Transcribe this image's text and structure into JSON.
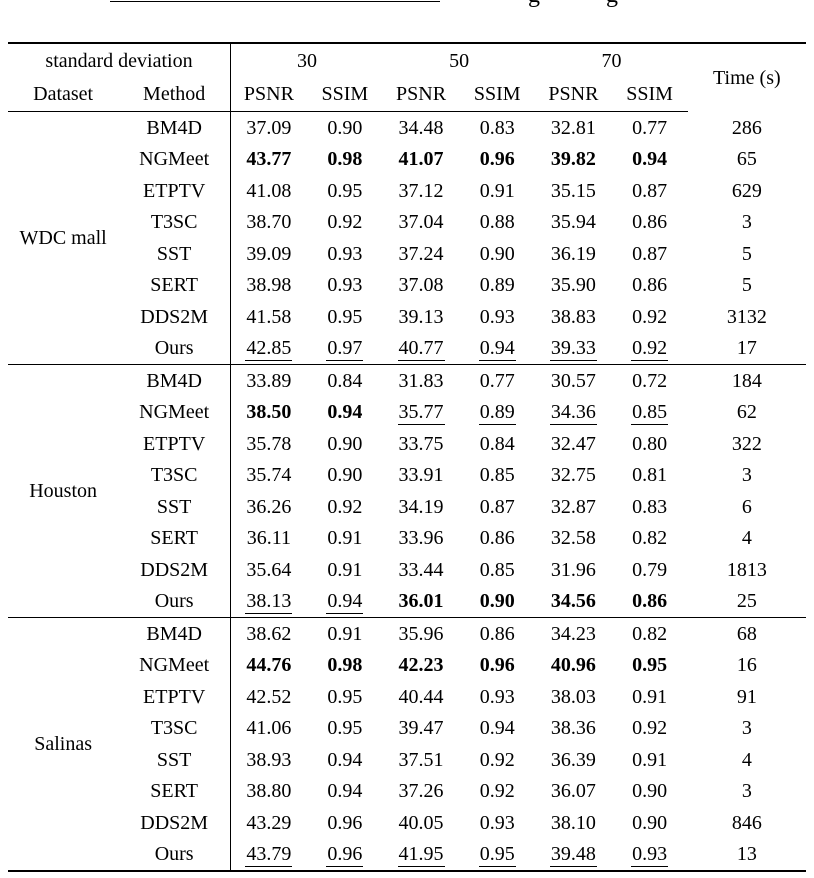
{
  "colors": {
    "text": "#000000",
    "background": "#ffffff",
    "rule": "#000000"
  },
  "caption_fragment": {
    "descenders": [
      "g",
      "g"
    ]
  },
  "table": {
    "header": {
      "std_dev_label": "standard deviation",
      "dataset_label": "Dataset",
      "method_label": "Method",
      "noise_levels": [
        "30",
        "50",
        "70"
      ],
      "metric_labels": [
        "PSNR",
        "SSIM",
        "PSNR",
        "SSIM",
        "PSNR",
        "SSIM"
      ],
      "time_label": "Time (s)"
    },
    "groups": [
      {
        "dataset": "WDC mall",
        "rows": [
          {
            "method": "BM4D",
            "values": [
              {
                "v": "37.09",
                "s": "p"
              },
              {
                "v": "0.90",
                "s": "p"
              },
              {
                "v": "34.48",
                "s": "p"
              },
              {
                "v": "0.83",
                "s": "p"
              },
              {
                "v": "32.81",
                "s": "p"
              },
              {
                "v": "0.77",
                "s": "p"
              }
            ],
            "time": "286"
          },
          {
            "method": "NGMeet",
            "values": [
              {
                "v": "43.77",
                "s": "b"
              },
              {
                "v": "0.98",
                "s": "b"
              },
              {
                "v": "41.07",
                "s": "b"
              },
              {
                "v": "0.96",
                "s": "b"
              },
              {
                "v": "39.82",
                "s": "b"
              },
              {
                "v": "0.94",
                "s": "b"
              }
            ],
            "time": "65"
          },
          {
            "method": "ETPTV",
            "values": [
              {
                "v": "41.08",
                "s": "p"
              },
              {
                "v": "0.95",
                "s": "p"
              },
              {
                "v": "37.12",
                "s": "p"
              },
              {
                "v": "0.91",
                "s": "p"
              },
              {
                "v": "35.15",
                "s": "p"
              },
              {
                "v": "0.87",
                "s": "p"
              }
            ],
            "time": "629"
          },
          {
            "method": "T3SC",
            "values": [
              {
                "v": "38.70",
                "s": "p"
              },
              {
                "v": "0.92",
                "s": "p"
              },
              {
                "v": "37.04",
                "s": "p"
              },
              {
                "v": "0.88",
                "s": "p"
              },
              {
                "v": "35.94",
                "s": "p"
              },
              {
                "v": "0.86",
                "s": "p"
              }
            ],
            "time": "3"
          },
          {
            "method": "SST",
            "values": [
              {
                "v": "39.09",
                "s": "p"
              },
              {
                "v": "0.93",
                "s": "p"
              },
              {
                "v": "37.24",
                "s": "p"
              },
              {
                "v": "0.90",
                "s": "p"
              },
              {
                "v": "36.19",
                "s": "p"
              },
              {
                "v": "0.87",
                "s": "p"
              }
            ],
            "time": "5"
          },
          {
            "method": "SERT",
            "values": [
              {
                "v": "38.98",
                "s": "p"
              },
              {
                "v": "0.93",
                "s": "p"
              },
              {
                "v": "37.08",
                "s": "p"
              },
              {
                "v": "0.89",
                "s": "p"
              },
              {
                "v": "35.90",
                "s": "p"
              },
              {
                "v": "0.86",
                "s": "p"
              }
            ],
            "time": "5"
          },
          {
            "method": "DDS2M",
            "values": [
              {
                "v": "41.58",
                "s": "p"
              },
              {
                "v": "0.95",
                "s": "p"
              },
              {
                "v": "39.13",
                "s": "p"
              },
              {
                "v": "0.93",
                "s": "p"
              },
              {
                "v": "38.83",
                "s": "p"
              },
              {
                "v": "0.92",
                "s": "p"
              }
            ],
            "time": "3132"
          },
          {
            "method": "Ours",
            "values": [
              {
                "v": "42.85",
                "s": "u"
              },
              {
                "v": "0.97",
                "s": "u"
              },
              {
                "v": "40.77",
                "s": "u"
              },
              {
                "v": "0.94",
                "s": "u"
              },
              {
                "v": "39.33",
                "s": "u"
              },
              {
                "v": "0.92",
                "s": "u"
              }
            ],
            "time": "17"
          }
        ]
      },
      {
        "dataset": "Houston",
        "rows": [
          {
            "method": "BM4D",
            "values": [
              {
                "v": "33.89",
                "s": "p"
              },
              {
                "v": "0.84",
                "s": "p"
              },
              {
                "v": "31.83",
                "s": "p"
              },
              {
                "v": "0.77",
                "s": "p"
              },
              {
                "v": "30.57",
                "s": "p"
              },
              {
                "v": "0.72",
                "s": "p"
              }
            ],
            "time": "184"
          },
          {
            "method": "NGMeet",
            "values": [
              {
                "v": "38.50",
                "s": "b"
              },
              {
                "v": "0.94",
                "s": "b"
              },
              {
                "v": "35.77",
                "s": "u"
              },
              {
                "v": "0.89",
                "s": "u"
              },
              {
                "v": "34.36",
                "s": "u"
              },
              {
                "v": "0.85",
                "s": "u"
              }
            ],
            "time": "62"
          },
          {
            "method": "ETPTV",
            "values": [
              {
                "v": "35.78",
                "s": "p"
              },
              {
                "v": "0.90",
                "s": "p"
              },
              {
                "v": "33.75",
                "s": "p"
              },
              {
                "v": "0.84",
                "s": "p"
              },
              {
                "v": "32.47",
                "s": "p"
              },
              {
                "v": "0.80",
                "s": "p"
              }
            ],
            "time": "322"
          },
          {
            "method": "T3SC",
            "values": [
              {
                "v": "35.74",
                "s": "p"
              },
              {
                "v": "0.90",
                "s": "p"
              },
              {
                "v": "33.91",
                "s": "p"
              },
              {
                "v": "0.85",
                "s": "p"
              },
              {
                "v": "32.75",
                "s": "p"
              },
              {
                "v": "0.81",
                "s": "p"
              }
            ],
            "time": "3"
          },
          {
            "method": "SST",
            "values": [
              {
                "v": "36.26",
                "s": "p"
              },
              {
                "v": "0.92",
                "s": "p"
              },
              {
                "v": "34.19",
                "s": "p"
              },
              {
                "v": "0.87",
                "s": "p"
              },
              {
                "v": "32.87",
                "s": "p"
              },
              {
                "v": "0.83",
                "s": "p"
              }
            ],
            "time": "6"
          },
          {
            "method": "SERT",
            "values": [
              {
                "v": "36.11",
                "s": "p"
              },
              {
                "v": "0.91",
                "s": "p"
              },
              {
                "v": "33.96",
                "s": "p"
              },
              {
                "v": "0.86",
                "s": "p"
              },
              {
                "v": "32.58",
                "s": "p"
              },
              {
                "v": "0.82",
                "s": "p"
              }
            ],
            "time": "4"
          },
          {
            "method": "DDS2M",
            "values": [
              {
                "v": "35.64",
                "s": "p"
              },
              {
                "v": "0.91",
                "s": "p"
              },
              {
                "v": "33.44",
                "s": "p"
              },
              {
                "v": "0.85",
                "s": "p"
              },
              {
                "v": "31.96",
                "s": "p"
              },
              {
                "v": "0.79",
                "s": "p"
              }
            ],
            "time": "1813"
          },
          {
            "method": "Ours",
            "values": [
              {
                "v": "38.13",
                "s": "u"
              },
              {
                "v": "0.94",
                "s": "u"
              },
              {
                "v": "36.01",
                "s": "b"
              },
              {
                "v": "0.90",
                "s": "b"
              },
              {
                "v": "34.56",
                "s": "b"
              },
              {
                "v": "0.86",
                "s": "b"
              }
            ],
            "time": "25"
          }
        ]
      },
      {
        "dataset": "Salinas",
        "rows": [
          {
            "method": "BM4D",
            "values": [
              {
                "v": "38.62",
                "s": "p"
              },
              {
                "v": "0.91",
                "s": "p"
              },
              {
                "v": "35.96",
                "s": "p"
              },
              {
                "v": "0.86",
                "s": "p"
              },
              {
                "v": "34.23",
                "s": "p"
              },
              {
                "v": "0.82",
                "s": "p"
              }
            ],
            "time": "68"
          },
          {
            "method": "NGMeet",
            "values": [
              {
                "v": "44.76",
                "s": "b"
              },
              {
                "v": "0.98",
                "s": "b"
              },
              {
                "v": "42.23",
                "s": "b"
              },
              {
                "v": "0.96",
                "s": "b"
              },
              {
                "v": "40.96",
                "s": "b"
              },
              {
                "v": "0.95",
                "s": "b"
              }
            ],
            "time": "16"
          },
          {
            "method": "ETPTV",
            "values": [
              {
                "v": "42.52",
                "s": "p"
              },
              {
                "v": "0.95",
                "s": "p"
              },
              {
                "v": "40.44",
                "s": "p"
              },
              {
                "v": "0.93",
                "s": "p"
              },
              {
                "v": "38.03",
                "s": "p"
              },
              {
                "v": "0.91",
                "s": "p"
              }
            ],
            "time": "91"
          },
          {
            "method": "T3SC",
            "values": [
              {
                "v": "41.06",
                "s": "p"
              },
              {
                "v": "0.95",
                "s": "p"
              },
              {
                "v": "39.47",
                "s": "p"
              },
              {
                "v": "0.94",
                "s": "p"
              },
              {
                "v": "38.36",
                "s": "p"
              },
              {
                "v": "0.92",
                "s": "p"
              }
            ],
            "time": "3"
          },
          {
            "method": "SST",
            "values": [
              {
                "v": "38.93",
                "s": "p"
              },
              {
                "v": "0.94",
                "s": "p"
              },
              {
                "v": "37.51",
                "s": "p"
              },
              {
                "v": "0.92",
                "s": "p"
              },
              {
                "v": "36.39",
                "s": "p"
              },
              {
                "v": "0.91",
                "s": "p"
              }
            ],
            "time": "4"
          },
          {
            "method": "SERT",
            "values": [
              {
                "v": "38.80",
                "s": "p"
              },
              {
                "v": "0.94",
                "s": "p"
              },
              {
                "v": "37.26",
                "s": "p"
              },
              {
                "v": "0.92",
                "s": "p"
              },
              {
                "v": "36.07",
                "s": "p"
              },
              {
                "v": "0.90",
                "s": "p"
              }
            ],
            "time": "3"
          },
          {
            "method": "DDS2M",
            "values": [
              {
                "v": "43.29",
                "s": "p"
              },
              {
                "v": "0.96",
                "s": "p"
              },
              {
                "v": "40.05",
                "s": "p"
              },
              {
                "v": "0.93",
                "s": "p"
              },
              {
                "v": "38.10",
                "s": "p"
              },
              {
                "v": "0.90",
                "s": "p"
              }
            ],
            "time": "846"
          },
          {
            "method": "Ours",
            "values": [
              {
                "v": "43.79",
                "s": "u"
              },
              {
                "v": "0.96",
                "s": "u"
              },
              {
                "v": "41.95",
                "s": "u"
              },
              {
                "v": "0.95",
                "s": "u"
              },
              {
                "v": "39.48",
                "s": "u"
              },
              {
                "v": "0.93",
                "s": "u"
              }
            ],
            "time": "13"
          }
        ]
      }
    ]
  }
}
